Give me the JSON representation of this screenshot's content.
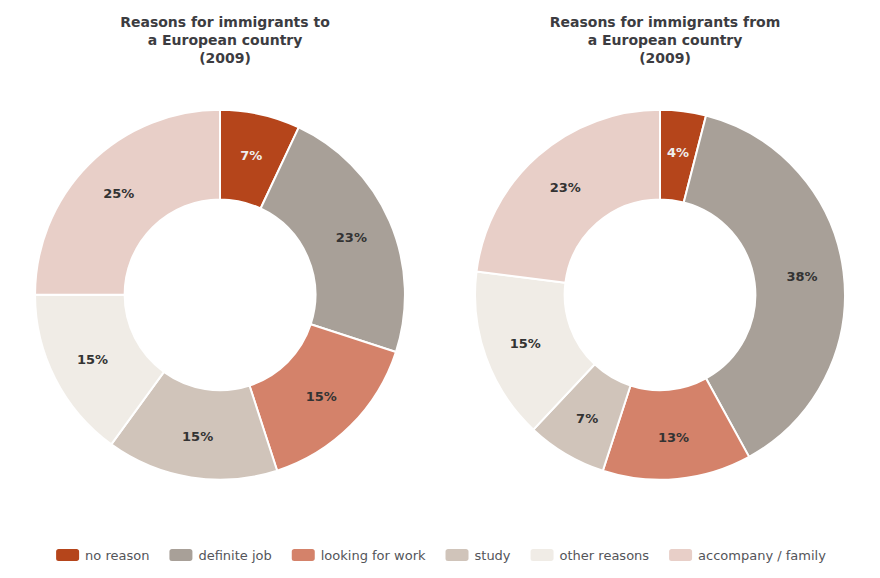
{
  "chart_data": [
    {
      "type": "pie",
      "title": "Reasons for immigrants to\na European country\n(2009)",
      "categories": [
        "no reason",
        "definite job",
        "looking for work",
        "study",
        "other reasons",
        "accompany / family"
      ],
      "values": [
        7,
        23,
        15,
        15,
        15,
        25
      ],
      "value_labels": [
        "7%",
        "23%",
        "15%",
        "15%",
        "15%",
        "25%"
      ],
      "colors": [
        "#b5451b",
        "#a8a098",
        "#d4826a",
        "#d0c4ba",
        "#f0ece6",
        "#e8cfc8"
      ],
      "data_labels": true,
      "legend": "bottom"
    },
    {
      "type": "pie",
      "title": "Reasons for immigrants from\na European country\n(2009)",
      "categories": [
        "no reason",
        "definite job",
        "looking for work",
        "study",
        "other reasons",
        "accompany / family"
      ],
      "values": [
        4,
        38,
        13,
        7,
        15,
        23
      ],
      "value_labels": [
        "4%",
        "38%",
        "13%",
        "7%",
        "15%",
        "23%"
      ],
      "colors": [
        "#b5451b",
        "#a8a098",
        "#d4826a",
        "#d0c4ba",
        "#f0ece6",
        "#e8cfc8"
      ],
      "data_labels": true,
      "legend": "bottom"
    }
  ]
}
